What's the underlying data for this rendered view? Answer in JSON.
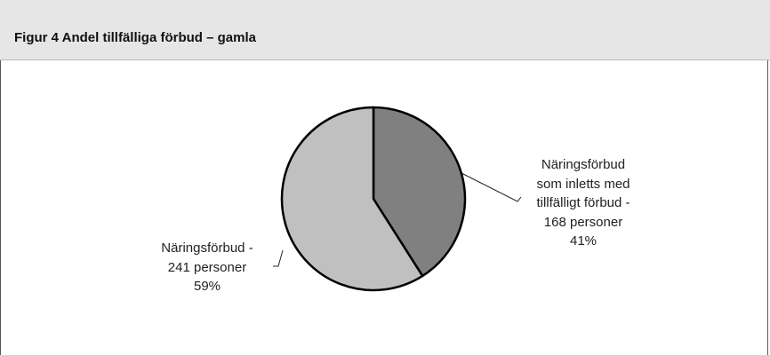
{
  "chart_data": {
    "type": "pie",
    "title": "Figur 4 Andel tillfälliga förbud – gamla",
    "categories": [
      "Näringsförbud\nsom inletts med\ntillfälligt förbud -\n168 personer",
      "Näringsförbud -\n241 personer"
    ],
    "values": [
      41,
      59
    ],
    "value_labels": [
      "41%",
      "59%"
    ],
    "colors": [
      "#808080",
      "#c0c0c0"
    ]
  }
}
